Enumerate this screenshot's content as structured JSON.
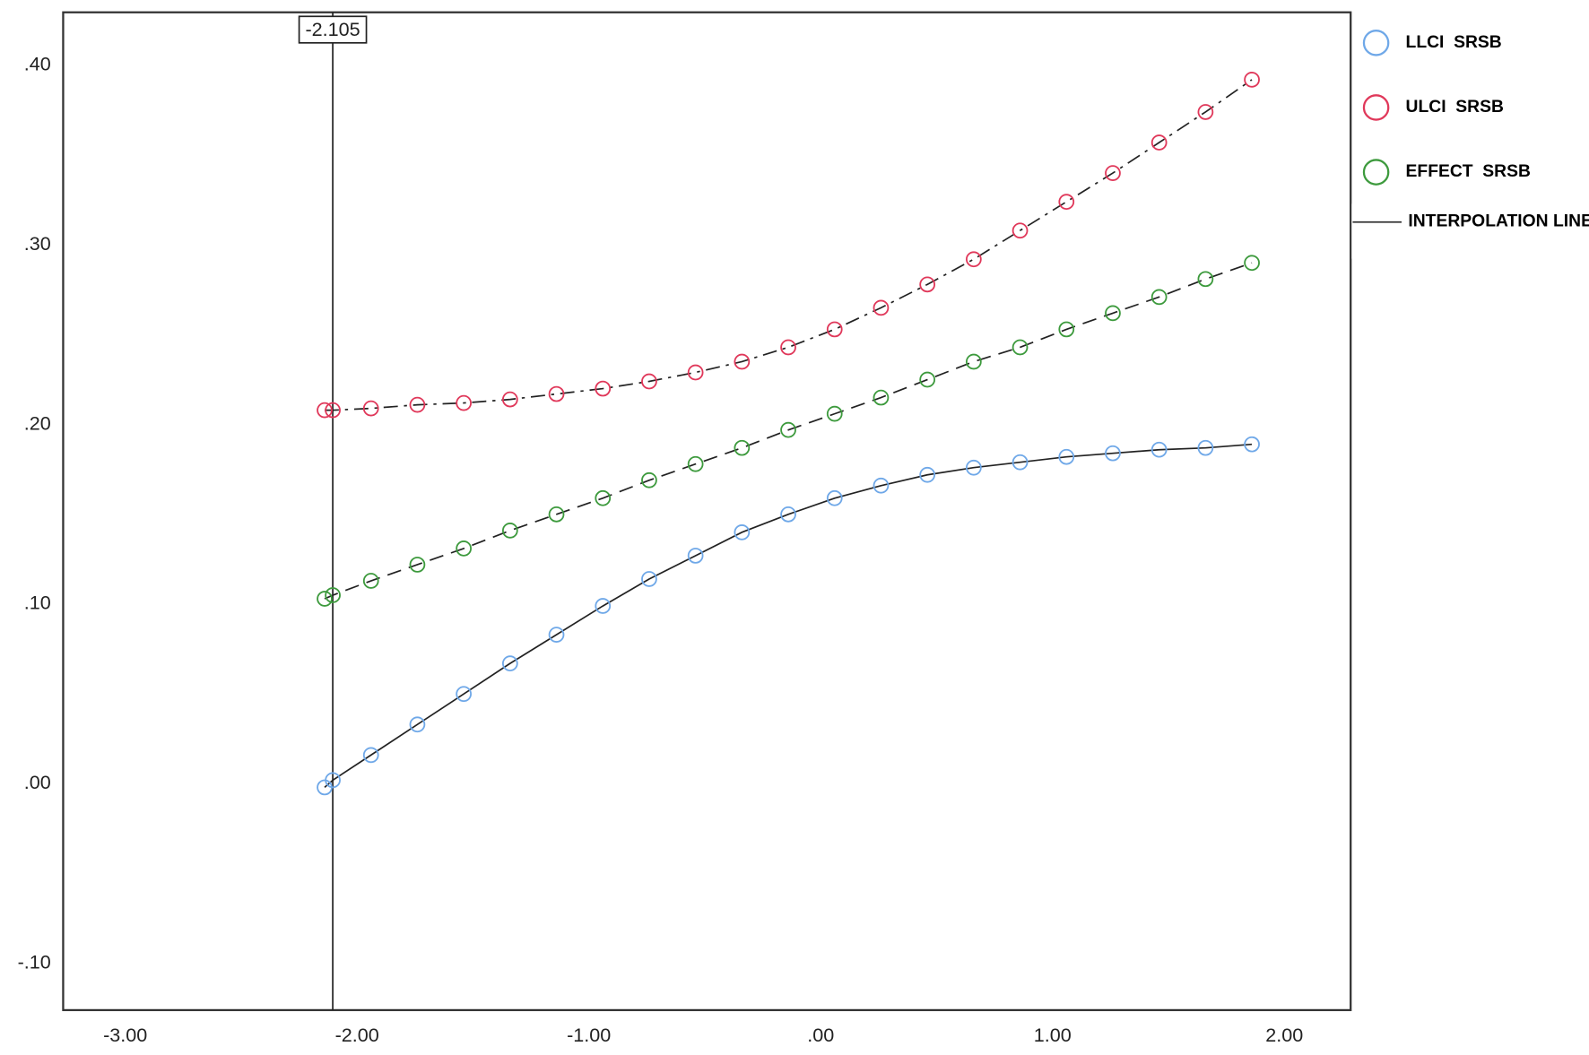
{
  "chart_data": {
    "type": "line",
    "x": [
      -2.14,
      -2.105,
      -1.94,
      -1.74,
      -1.54,
      -1.34,
      -1.14,
      -0.94,
      -0.74,
      -0.54,
      -0.34,
      -0.14,
      0.06,
      0.26,
      0.46,
      0.66,
      0.86,
      1.06,
      1.26,
      1.46,
      1.66,
      1.86
    ],
    "series": [
      {
        "name": "LLCI  SRSB",
        "color": "#6fa8e8",
        "line_style": "solid",
        "values": [
          -0.002,
          0.002,
          0.016,
          0.033,
          0.05,
          0.067,
          0.083,
          0.099,
          0.114,
          0.127,
          0.14,
          0.15,
          0.159,
          0.166,
          0.172,
          0.176,
          0.179,
          0.182,
          0.184,
          0.186,
          0.187,
          0.189
        ]
      },
      {
        "name": "ULCI  SRSB",
        "color": "#e0385a",
        "line_style": "dash-dot",
        "values": [
          0.208,
          0.208,
          0.209,
          0.211,
          0.212,
          0.214,
          0.217,
          0.22,
          0.224,
          0.229,
          0.235,
          0.243,
          0.253,
          0.265,
          0.278,
          0.292,
          0.308,
          0.324,
          0.34,
          0.357,
          0.374,
          0.392
        ]
      },
      {
        "name": "EFFECT  SRSB",
        "color": "#3d9a3d",
        "line_style": "dashed",
        "values": [
          0.103,
          0.105,
          0.113,
          0.122,
          0.131,
          0.141,
          0.15,
          0.159,
          0.169,
          0.178,
          0.187,
          0.197,
          0.206,
          0.215,
          0.225,
          0.235,
          0.243,
          0.253,
          0.262,
          0.271,
          0.281,
          0.29
        ]
      }
    ],
    "interpolation_label": "INTERPOLATION LINE",
    "reference_line": -2.105,
    "xlim": [
      -3.268,
      2.286
    ],
    "xticks": [
      {
        "value": -3,
        "label": "-3.00"
      },
      {
        "value": -2,
        "label": "-2.00"
      },
      {
        "value": -1,
        "label": "-1.00"
      },
      {
        "value": 0,
        "label": ".00"
      },
      {
        "value": 1,
        "label": "1.00"
      },
      {
        "value": 2,
        "label": "2.00"
      }
    ],
    "ylim": [
      -0.126,
      0.4295
    ],
    "yticks": [
      {
        "value": -0.1,
        "label": "-.10"
      },
      {
        "value": 0,
        "label": ".00"
      },
      {
        "value": 0.1,
        "label": ".10"
      },
      {
        "value": 0.2,
        "label": ".20"
      },
      {
        "value": 0.3,
        "label": ".30"
      },
      {
        "value": 0.4,
        "label": ".40"
      }
    ],
    "grid": false,
    "legend": "right"
  }
}
